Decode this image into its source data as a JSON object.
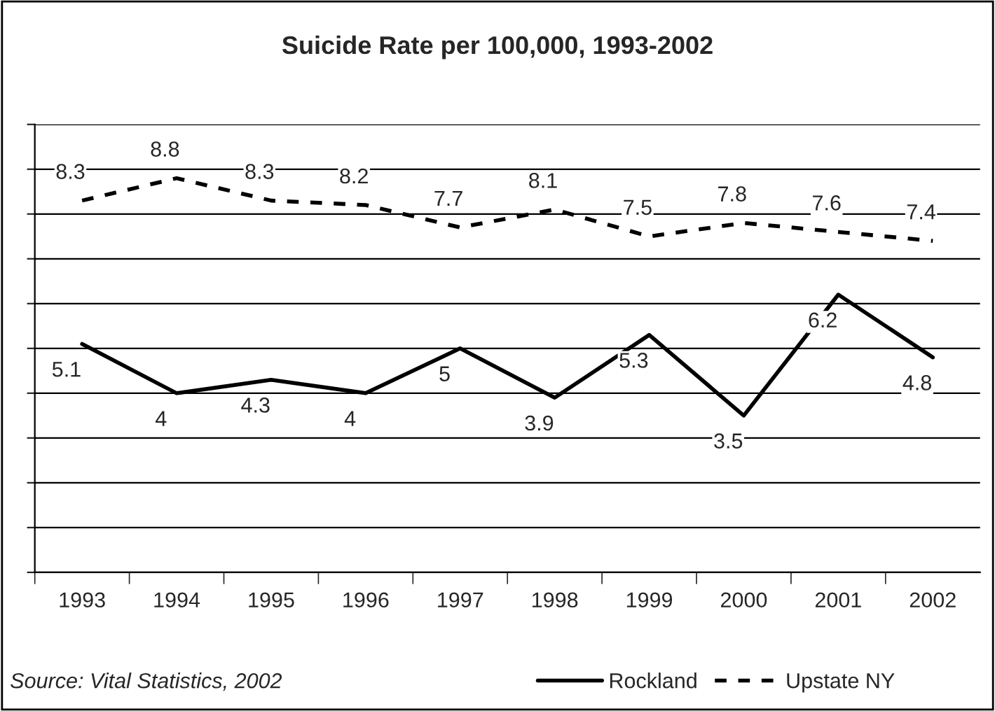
{
  "chart_data": {
    "type": "line",
    "title": "Suicide Rate per 100,000, 1993-2002",
    "categories": [
      "1993",
      "1994",
      "1995",
      "1996",
      "1997",
      "1998",
      "1999",
      "2000",
      "2001",
      "2002"
    ],
    "series": [
      {
        "name": "Rockland",
        "color": "#000000",
        "line_style": "solid",
        "values": [
          5.1,
          4,
          4.3,
          4,
          5,
          3.9,
          5.3,
          3.5,
          6.2,
          4.8
        ]
      },
      {
        "name": "Upstate NY",
        "color": "#000000",
        "line_style": "dashed",
        "values": [
          8.3,
          8.8,
          8.3,
          8.2,
          7.7,
          8.1,
          7.5,
          7.8,
          7.6,
          7.4
        ]
      }
    ],
    "ylim": [
      0,
      10
    ],
    "yticks": [
      {
        "value": 0,
        "label": null
      },
      {
        "value": 1,
        "label": null
      },
      {
        "value": 2,
        "label": null
      },
      {
        "value": 3,
        "label": null
      },
      {
        "value": 4,
        "label": null
      },
      {
        "value": 5,
        "label": null
      },
      {
        "value": 6,
        "label": null
      },
      {
        "value": 7,
        "label": null
      },
      {
        "value": 8,
        "label": null
      },
      {
        "value": 9,
        "label": null
      },
      {
        "value": 10,
        "label": null
      }
    ],
    "tick_labels": "x",
    "grid": "y",
    "data_labels": true,
    "legend": "bottom",
    "marker": "none",
    "annotations": [
      "Source: Vital Statistics, 2002"
    ]
  }
}
